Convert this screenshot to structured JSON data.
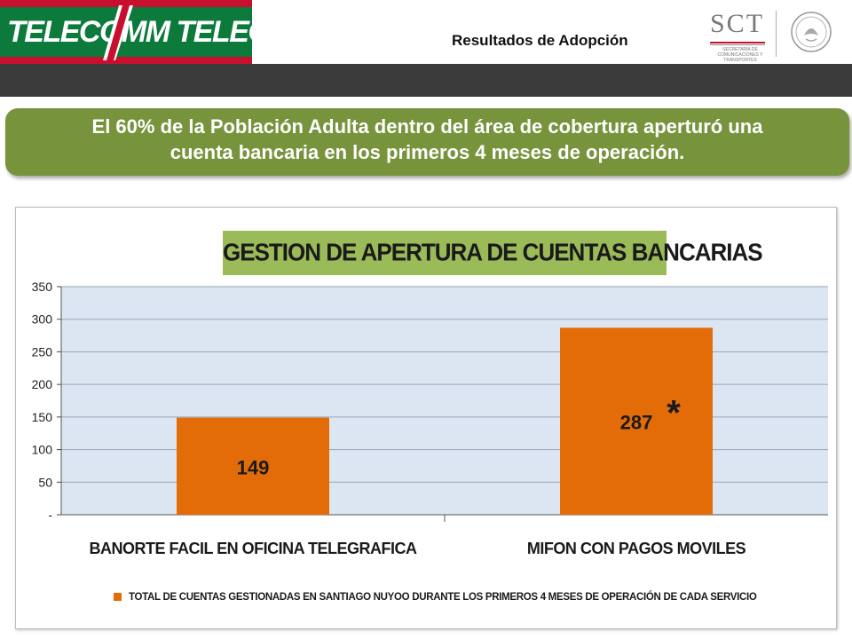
{
  "header": {
    "logo_text": "TELECOMM TELEGRAFOS",
    "right_title": "Resultados de Adopción",
    "sct_name": "SCT",
    "sct_subtitle": "SECRETARÍA DE COMUNICACIONES Y TRANSPORTES"
  },
  "banner": {
    "line1": "El 60% de la Población Adulta dentro del área de cobertura aperturó una",
    "line2": "cuenta bancaria en los primeros 4 meses de operación."
  },
  "colors": {
    "bar": "#e36c09",
    "plot_background": "#dce6f2",
    "banner": "#77933c",
    "title_box": "#9bbb59"
  },
  "chart_data": {
    "type": "bar",
    "title": "GESTION DE APERTURA  DE CUENTAS BANCARIAS",
    "categories": [
      "BANORTE FACIL EN OFICINA TELEGRAFICA",
      "MIFON CON PAGOS MOVILES"
    ],
    "series": [
      {
        "name": "TOTAL DE CUENTAS GESTIONADAS EN SANTIAGO NUYOO DURANTE LOS PRIMEROS 4 MESES DE OPERACIÓN DE CADA SERVICIO",
        "values": [
          149,
          287
        ],
        "data_labels": [
          "149",
          "287"
        ]
      }
    ],
    "annotation": "*",
    "yticks": [
      "-",
      "50",
      "100",
      "150",
      "200",
      "250",
      "300",
      "350"
    ],
    "ylim": [
      0,
      350
    ],
    "grid": true,
    "legend_position": "bottom"
  }
}
